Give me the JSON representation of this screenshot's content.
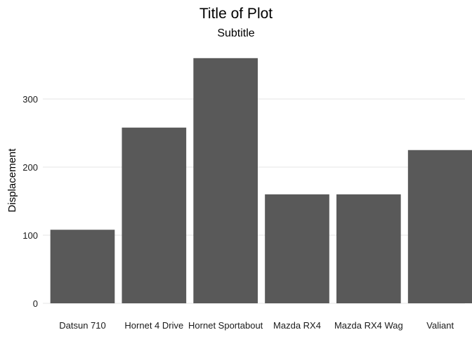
{
  "chart_data": {
    "type": "bar",
    "title": "Title of Plot",
    "subtitle": "Subtitle",
    "xlabel": "",
    "ylabel": "Displacement",
    "categories": [
      "Datsun 710",
      "Hornet 4 Drive",
      "Hornet Sportabout",
      "Mazda RX4",
      "Mazda RX4 Wag",
      "Valiant"
    ],
    "values": [
      108,
      258,
      360,
      160,
      160,
      225
    ],
    "yticks": [
      0,
      100,
      200,
      300
    ],
    "ytick_labels": [
      "0",
      "100",
      "200",
      "300"
    ],
    "ylim": [
      0,
      378
    ],
    "grid": true,
    "bar_color": "#595959",
    "grid_color": "#e5e5e5"
  }
}
